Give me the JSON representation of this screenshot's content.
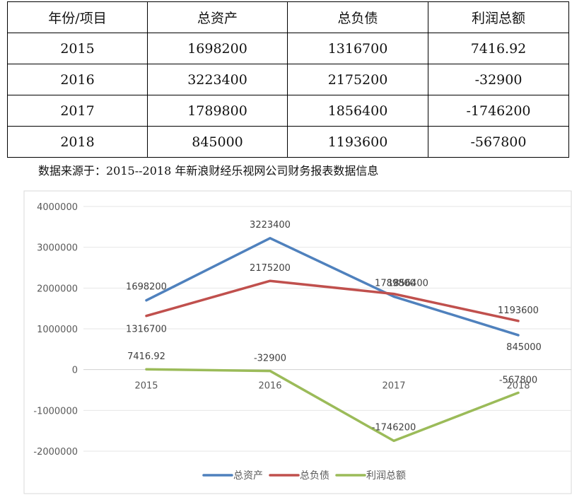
{
  "table": {
    "headers": [
      "年份/项目",
      "总资产",
      "总负债",
      "利润总额"
    ],
    "rows": [
      [
        "2015",
        "1698200",
        "1316700",
        "7416.92"
      ],
      [
        "2016",
        "3223400",
        "2175200",
        "-32900"
      ],
      [
        "2017",
        "1789800",
        "1856400",
        "-1746200"
      ],
      [
        "2018",
        "845000",
        "1193600",
        "-567800"
      ]
    ]
  },
  "source_note": "数据来源于：2015--2018 年新浪财经乐视网公司财务报表数据信息",
  "chart_data": {
    "type": "line",
    "categories": [
      "2015",
      "2016",
      "2017",
      "2018"
    ],
    "y_ticks": [
      "4000000",
      "3000000",
      "2000000",
      "1000000",
      "0",
      "-1000000",
      "-2000000"
    ],
    "ylim": [
      -2000000,
      4000000
    ],
    "grid": true,
    "legend_position": "bottom",
    "series": [
      {
        "name": "总资产",
        "color": "#4f81bd",
        "values": [
          1698200,
          3223400,
          1789800,
          845000
        ],
        "labels": [
          "1698200",
          "3223400",
          "1789800",
          "845000"
        ]
      },
      {
        "name": "总负债",
        "color": "#c0504d",
        "values": [
          1316700,
          2175200,
          1856400,
          1193600
        ],
        "labels": [
          "1316700",
          "2175200",
          "1856400",
          "1193600"
        ]
      },
      {
        "name": "利润总额",
        "color": "#9bbb59",
        "values": [
          7416.92,
          -32900,
          -1746200,
          -567800
        ],
        "labels": [
          "7416.92",
          "-32900",
          "-1746200",
          "-567800"
        ]
      }
    ]
  }
}
